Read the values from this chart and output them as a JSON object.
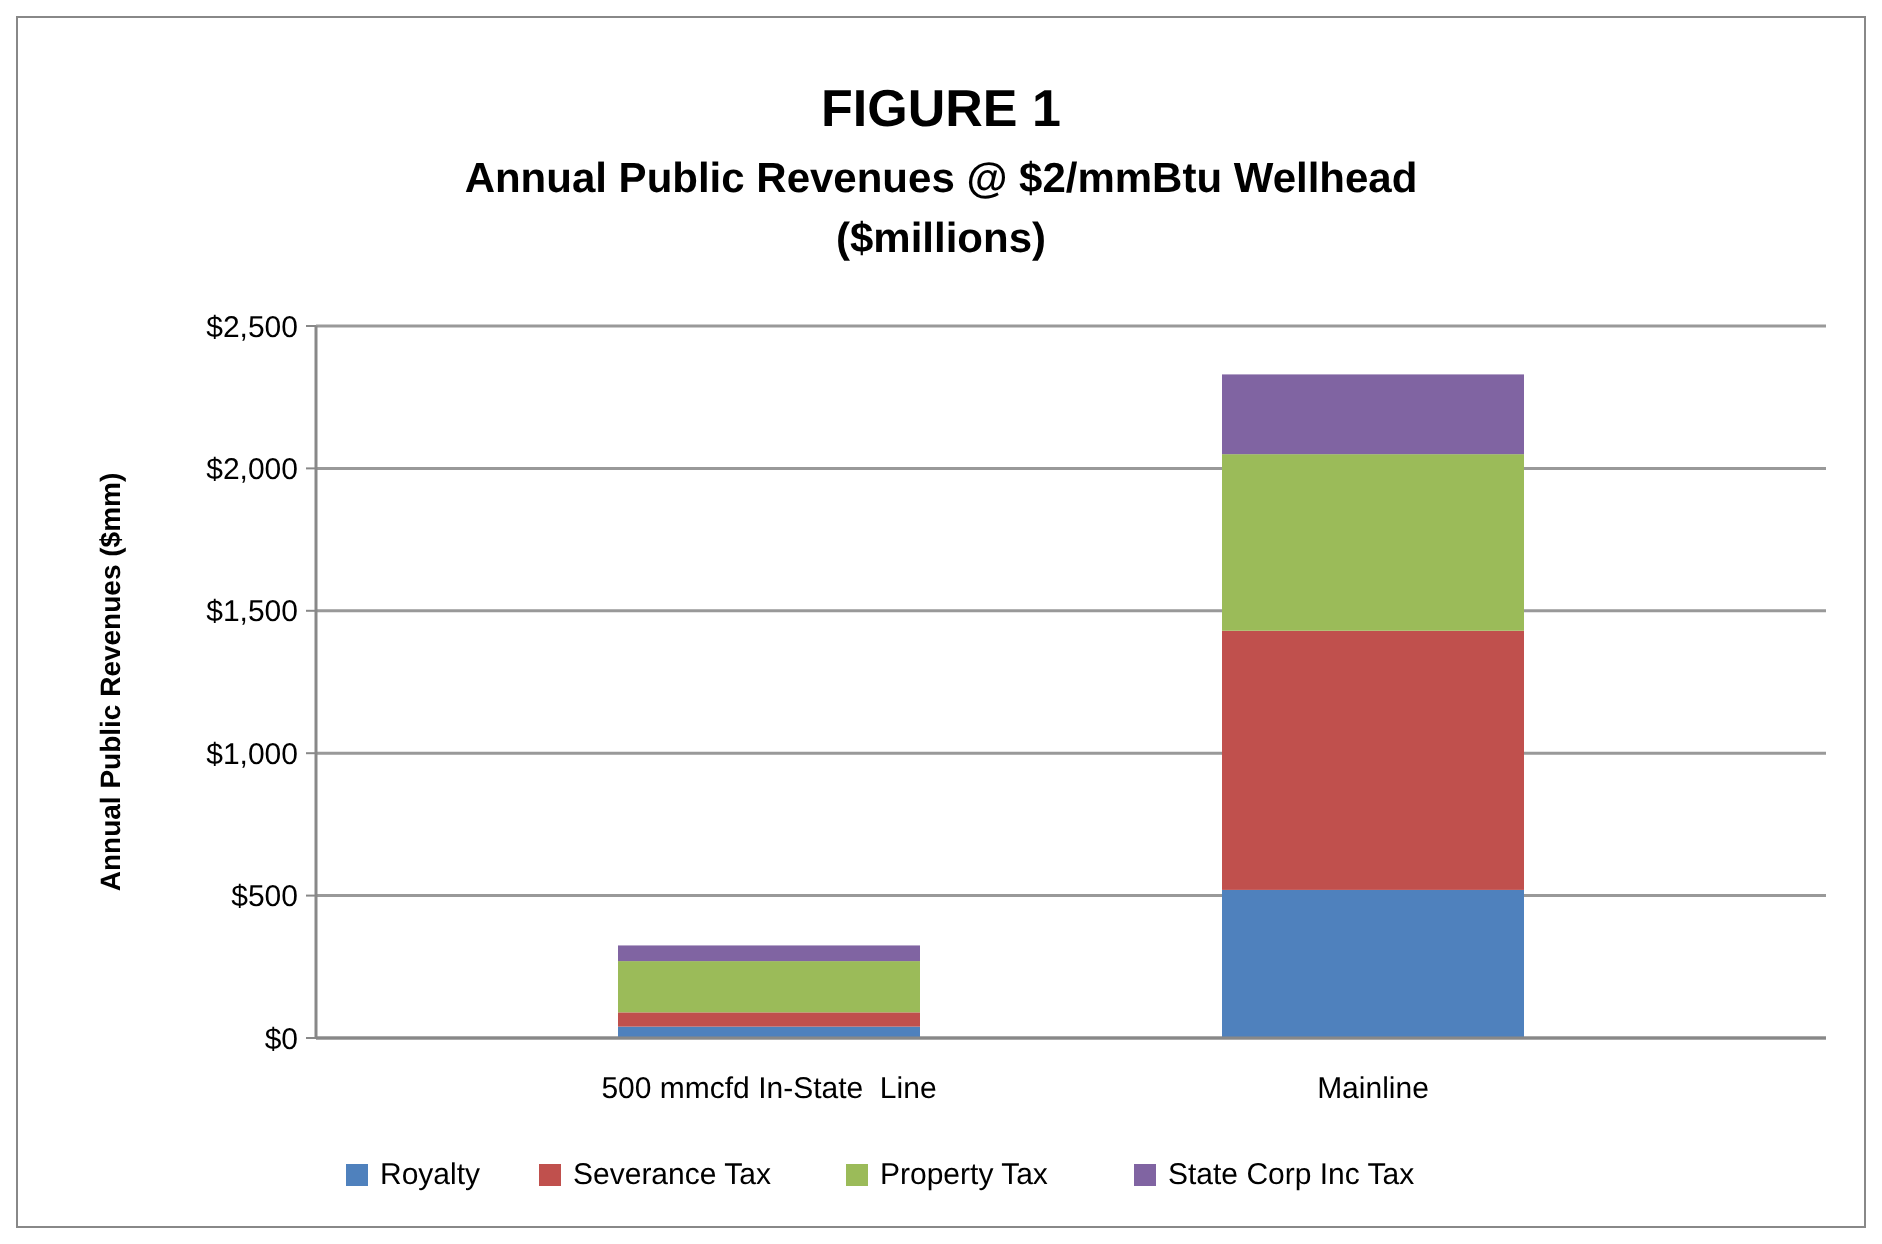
{
  "chart_data": {
    "type": "bar",
    "title": "FIGURE 1",
    "subtitle": "Annual Public Revenues @ $2/mmBtu Wellhead\n($millions)",
    "ylabel": "Annual Public Revenues ($mm)",
    "categories": [
      "500 mmcfd In-State  Line",
      "Mainline"
    ],
    "stacked": true,
    "series": [
      {
        "name": "Royalty",
        "color": "#4f81bd",
        "values": [
          40,
          520
        ]
      },
      {
        "name": "Severance Tax",
        "color": "#c0504d",
        "values": [
          50,
          910
        ]
      },
      {
        "name": "Property Tax",
        "color": "#9bbb59",
        "values": [
          180,
          620
        ]
      },
      {
        "name": "State Corp Inc Tax",
        "color": "#8064a2",
        "values": [
          55,
          280
        ]
      }
    ],
    "ylim": [
      0,
      2500
    ],
    "yticks": [
      {
        "value": 0,
        "label": "$0"
      },
      {
        "value": 500,
        "label": "$500"
      },
      {
        "value": 1000,
        "label": "$1,000"
      },
      {
        "value": 1500,
        "label": "$1,500"
      },
      {
        "value": 2000,
        "label": "$2,000"
      },
      {
        "value": 2500,
        "label": "$2,500"
      }
    ],
    "grid": "y",
    "legend": "bottom"
  }
}
